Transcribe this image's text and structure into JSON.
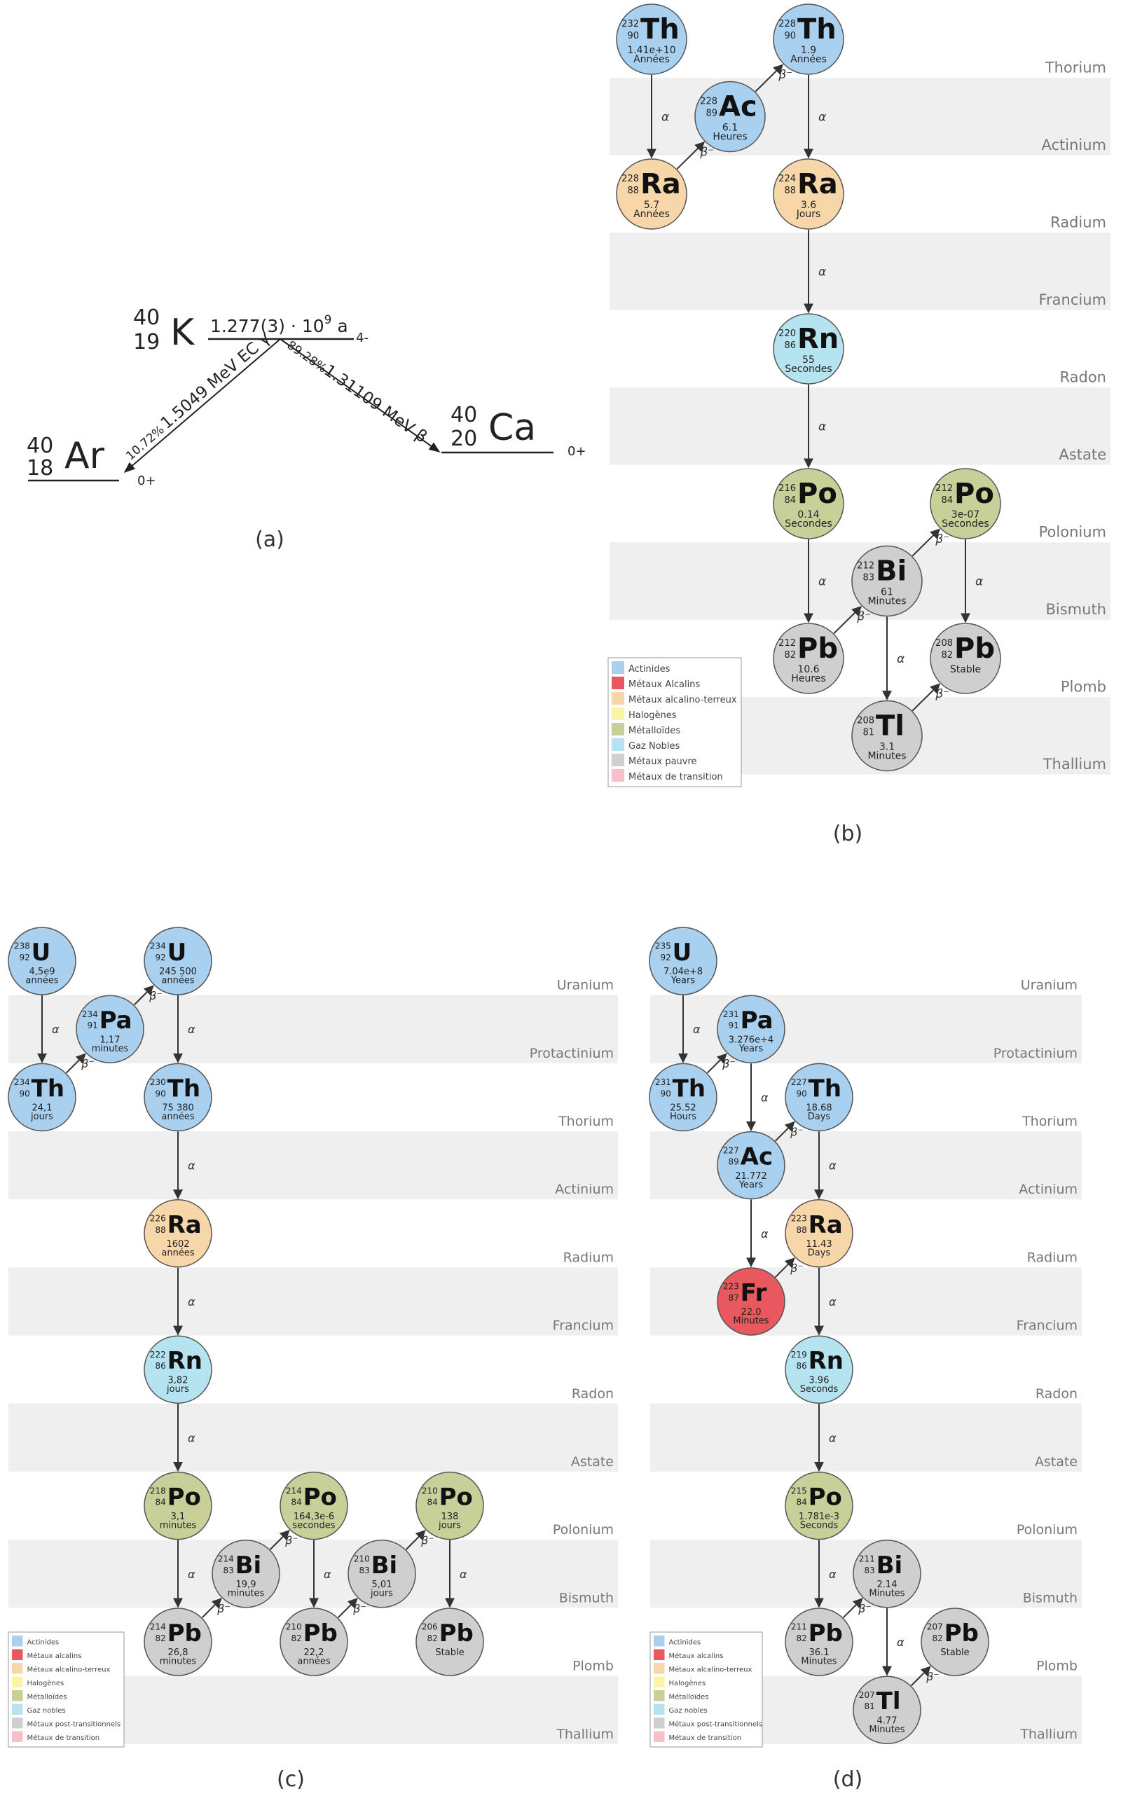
{
  "colors": {
    "actinide": "#a9d0ef",
    "alkali": "#e8585e",
    "alkaline_earth": "#f7d6a9",
    "halogen": "#fbf4a6",
    "metalloid": "#c9cf98",
    "noble_gas": "#b5e3ef",
    "poor_metal": "#cfcfcf",
    "transition": "#f5c0c8",
    "band": "#efefef",
    "stroke": "#555555",
    "arrow": "#333333"
  },
  "panel_a": {
    "caption": "(a)",
    "parent": {
      "mass": "40",
      "z": "19",
      "sym": "K",
      "halflife": "1.277(3) · 10",
      "exp": "9",
      "unit": " a",
      "spin": "4-"
    },
    "left": {
      "mass": "40",
      "z": "18",
      "sym": "Ar",
      "spin": "0+",
      "branch_pct": "10.72%",
      "branch_label": "1.5049 MeV EC γ"
    },
    "right": {
      "mass": "40",
      "z": "20",
      "sym": "Ca",
      "spin": "0+",
      "branch_pct": "89.28%",
      "branch_label": "1.31109 MeV β"
    }
  },
  "panel_b": {
    "caption": "(b)",
    "elements": [
      "Thorium",
      "Actinium",
      "Radium",
      "Francium",
      "Radon",
      "Astate",
      "Polonium",
      "Bismuth",
      "Plomb",
      "Thallium"
    ],
    "nodes": [
      {
        "sym": "Th",
        "mass": "232",
        "z": "90",
        "val": "1.41e+10",
        "unit": "Années",
        "cat": "actinide",
        "row": 0,
        "col": 0
      },
      {
        "sym": "Th",
        "mass": "228",
        "z": "90",
        "val": "1.9",
        "unit": "Années",
        "cat": "actinide",
        "row": 0,
        "col": 2
      },
      {
        "sym": "Ac",
        "mass": "228",
        "z": "89",
        "val": "6.1",
        "unit": "Heures",
        "cat": "actinide",
        "row": 1,
        "col": 1
      },
      {
        "sym": "Ra",
        "mass": "228",
        "z": "88",
        "val": "5.7",
        "unit": "Années",
        "cat": "alkaline_earth",
        "row": 2,
        "col": 0
      },
      {
        "sym": "Ra",
        "mass": "224",
        "z": "88",
        "val": "3.6",
        "unit": "Jours",
        "cat": "alkaline_earth",
        "row": 2,
        "col": 2
      },
      {
        "sym": "Rn",
        "mass": "220",
        "z": "86",
        "val": "55",
        "unit": "Secondes",
        "cat": "noble_gas",
        "row": 4,
        "col": 2
      },
      {
        "sym": "Po",
        "mass": "216",
        "z": "84",
        "val": "0.14",
        "unit": "Secondes",
        "cat": "metalloid",
        "row": 6,
        "col": 2
      },
      {
        "sym": "Po",
        "mass": "212",
        "z": "84",
        "val": "3e-07",
        "unit": "Secondes",
        "cat": "metalloid",
        "row": 6,
        "col": 4
      },
      {
        "sym": "Bi",
        "mass": "212",
        "z": "83",
        "val": "61",
        "unit": "Minutes",
        "cat": "poor_metal",
        "row": 7,
        "col": 3
      },
      {
        "sym": "Pb",
        "mass": "212",
        "z": "82",
        "val": "10.6",
        "unit": "Heures",
        "cat": "poor_metal",
        "row": 8,
        "col": 2
      },
      {
        "sym": "Pb",
        "mass": "208",
        "z": "82",
        "val": "Stable",
        "unit": "",
        "cat": "poor_metal",
        "row": 8,
        "col": 4
      },
      {
        "sym": "Tl",
        "mass": "208",
        "z": "81",
        "val": "3.1",
        "unit": "Minutes",
        "cat": "poor_metal",
        "row": 9,
        "col": 3
      }
    ],
    "edges": [
      {
        "from": 0,
        "to": 3,
        "label": "α"
      },
      {
        "from": 3,
        "to": 2,
        "label": "β⁻"
      },
      {
        "from": 2,
        "to": 1,
        "label": "β⁻"
      },
      {
        "from": 1,
        "to": 4,
        "label": "α"
      },
      {
        "from": 4,
        "to": 5,
        "label": "α"
      },
      {
        "from": 5,
        "to": 6,
        "label": "α"
      },
      {
        "from": 6,
        "to": 9,
        "label": "α"
      },
      {
        "from": 9,
        "to": 8,
        "label": "β⁻"
      },
      {
        "from": 8,
        "to": 7,
        "label": "β⁻"
      },
      {
        "from": 7,
        "to": 10,
        "label": "α"
      },
      {
        "from": 8,
        "to": 11,
        "label": "α"
      },
      {
        "from": 11,
        "to": 10,
        "label": "β⁻"
      }
    ],
    "legend": [
      "Actinides",
      "Métaux Alcalins",
      "Métaux alcalino-terreux",
      "Halogènes",
      "Métalloïdes",
      "Gaz Nobles",
      "Métaux pauvre",
      "Métaux de transition"
    ]
  },
  "panel_c": {
    "caption": "(c)",
    "elements": [
      "Uranium",
      "Protactinium",
      "Thorium",
      "Actinium",
      "Radium",
      "Francium",
      "Radon",
      "Astate",
      "Polonium",
      "Bismuth",
      "Plomb",
      "Thallium"
    ],
    "nodes": [
      {
        "sym": "U",
        "mass": "238",
        "z": "92",
        "val": "4,5e9",
        "unit": "années",
        "cat": "actinide",
        "row": 0,
        "col": 0
      },
      {
        "sym": "U",
        "mass": "234",
        "z": "92",
        "val": "245 500",
        "unit": "années",
        "cat": "actinide",
        "row": 0,
        "col": 2
      },
      {
        "sym": "Pa",
        "mass": "234",
        "z": "91",
        "val": "1,17",
        "unit": "minutes",
        "cat": "actinide",
        "row": 1,
        "col": 1
      },
      {
        "sym": "Th",
        "mass": "234",
        "z": "90",
        "val": "24,1",
        "unit": "jours",
        "cat": "actinide",
        "row": 2,
        "col": 0
      },
      {
        "sym": "Th",
        "mass": "230",
        "z": "90",
        "val": "75 380",
        "unit": "années",
        "cat": "actinide",
        "row": 2,
        "col": 2
      },
      {
        "sym": "Ra",
        "mass": "226",
        "z": "88",
        "val": "1602",
        "unit": "années",
        "cat": "alkaline_earth",
        "row": 4,
        "col": 2
      },
      {
        "sym": "Rn",
        "mass": "222",
        "z": "86",
        "val": "3,82",
        "unit": "jours",
        "cat": "noble_gas",
        "row": 6,
        "col": 2
      },
      {
        "sym": "Po",
        "mass": "218",
        "z": "84",
        "val": "3,1",
        "unit": "minutes",
        "cat": "metalloid",
        "row": 8,
        "col": 2
      },
      {
        "sym": "Po",
        "mass": "214",
        "z": "84",
        "val": "164,3e-6",
        "unit": "secondes",
        "cat": "metalloid",
        "row": 8,
        "col": 4
      },
      {
        "sym": "Po",
        "mass": "210",
        "z": "84",
        "val": "138",
        "unit": "jours",
        "cat": "metalloid",
        "row": 8,
        "col": 6
      },
      {
        "sym": "Bi",
        "mass": "214",
        "z": "83",
        "val": "19,9",
        "unit": "minutes",
        "cat": "poor_metal",
        "row": 9,
        "col": 3
      },
      {
        "sym": "Bi",
        "mass": "210",
        "z": "83",
        "val": "5,01",
        "unit": "jours",
        "cat": "poor_metal",
        "row": 9,
        "col": 5
      },
      {
        "sym": "Pb",
        "mass": "214",
        "z": "82",
        "val": "26,8",
        "unit": "minutes",
        "cat": "poor_metal",
        "row": 10,
        "col": 2
      },
      {
        "sym": "Pb",
        "mass": "210",
        "z": "82",
        "val": "22,2",
        "unit": "années",
        "cat": "poor_metal",
        "row": 10,
        "col": 4
      },
      {
        "sym": "Pb",
        "mass": "206",
        "z": "82",
        "val": "Stable",
        "unit": "",
        "cat": "poor_metal",
        "row": 10,
        "col": 6
      }
    ],
    "edges": [
      {
        "from": 0,
        "to": 3,
        "label": "α"
      },
      {
        "from": 3,
        "to": 2,
        "label": "β⁻"
      },
      {
        "from": 2,
        "to": 1,
        "label": "β⁻"
      },
      {
        "from": 1,
        "to": 4,
        "label": "α"
      },
      {
        "from": 4,
        "to": 5,
        "label": "α"
      },
      {
        "from": 5,
        "to": 6,
        "label": "α"
      },
      {
        "from": 6,
        "to": 7,
        "label": "α"
      },
      {
        "from": 7,
        "to": 12,
        "label": "α"
      },
      {
        "from": 12,
        "to": 10,
        "label": "β⁻"
      },
      {
        "from": 10,
        "to": 8,
        "label": "β⁻"
      },
      {
        "from": 8,
        "to": 13,
        "label": "α"
      },
      {
        "from": 13,
        "to": 11,
        "label": "β⁻"
      },
      {
        "from": 11,
        "to": 9,
        "label": "β⁻"
      },
      {
        "from": 9,
        "to": 14,
        "label": "α"
      }
    ],
    "legend": [
      "Actinides",
      "Métaux alcalins",
      "Métaux alcalino-terreux",
      "Halogènes",
      "Métalloïdes",
      "Gaz nobles",
      "Métaux post-transitionnels",
      "Métaux de transition"
    ]
  },
  "panel_d": {
    "caption": "(d)",
    "elements": [
      "Uranium",
      "Protactinium",
      "Thorium",
      "Actinium",
      "Radium",
      "Francium",
      "Radon",
      "Astate",
      "Polonium",
      "Bismuth",
      "Plomb",
      "Thallium"
    ],
    "nodes": [
      {
        "sym": "U",
        "mass": "235",
        "z": "92",
        "val": "7.04e+8",
        "unit": "Years",
        "cat": "actinide",
        "row": 0,
        "col": 0
      },
      {
        "sym": "Pa",
        "mass": "231",
        "z": "91",
        "val": "3.276e+4",
        "unit": "Years",
        "cat": "actinide",
        "row": 1,
        "col": 1
      },
      {
        "sym": "Th",
        "mass": "231",
        "z": "90",
        "val": "25.52",
        "unit": "Hours",
        "cat": "actinide",
        "row": 2,
        "col": 0
      },
      {
        "sym": "Th",
        "mass": "227",
        "z": "90",
        "val": "18.68",
        "unit": "Days",
        "cat": "actinide",
        "row": 2,
        "col": 2
      },
      {
        "sym": "Ac",
        "mass": "227",
        "z": "89",
        "val": "21.772",
        "unit": "Years",
        "cat": "actinide",
        "row": 3,
        "col": 1
      },
      {
        "sym": "Ra",
        "mass": "223",
        "z": "88",
        "val": "11.43",
        "unit": "Days",
        "cat": "alkaline_earth",
        "row": 4,
        "col": 2
      },
      {
        "sym": "Fr",
        "mass": "223",
        "z": "87",
        "val": "22.0",
        "unit": "Minutes",
        "cat": "alkali",
        "row": 5,
        "col": 1
      },
      {
        "sym": "Rn",
        "mass": "219",
        "z": "86",
        "val": "3.96",
        "unit": "Seconds",
        "cat": "noble_gas",
        "row": 6,
        "col": 2
      },
      {
        "sym": "Po",
        "mass": "215",
        "z": "84",
        "val": "1.781e-3",
        "unit": "Seconds",
        "cat": "metalloid",
        "row": 8,
        "col": 2
      },
      {
        "sym": "Bi",
        "mass": "211",
        "z": "83",
        "val": "2.14",
        "unit": "Minutes",
        "cat": "poor_metal",
        "row": 9,
        "col": 3
      },
      {
        "sym": "Pb",
        "mass": "211",
        "z": "82",
        "val": "36.1",
        "unit": "Minutes",
        "cat": "poor_metal",
        "row": 10,
        "col": 2
      },
      {
        "sym": "Pb",
        "mass": "207",
        "z": "82",
        "val": "Stable",
        "unit": "",
        "cat": "poor_metal",
        "row": 10,
        "col": 4
      },
      {
        "sym": "Tl",
        "mass": "207",
        "z": "81",
        "val": "4.77",
        "unit": "Minutes",
        "cat": "poor_metal",
        "row": 11,
        "col": 3
      }
    ],
    "edges": [
      {
        "from": 0,
        "to": 2,
        "label": "α"
      },
      {
        "from": 2,
        "to": 1,
        "label": "β⁻"
      },
      {
        "from": 1,
        "to": 4,
        "label": "α"
      },
      {
        "from": 4,
        "to": 3,
        "label": "β⁻"
      },
      {
        "from": 3,
        "to": 5,
        "label": "α"
      },
      {
        "from": 4,
        "to": 6,
        "label": "α"
      },
      {
        "from": 6,
        "to": 5,
        "label": "β⁻"
      },
      {
        "from": 5,
        "to": 7,
        "label": "α"
      },
      {
        "from": 7,
        "to": 8,
        "label": "α"
      },
      {
        "from": 8,
        "to": 10,
        "label": "α"
      },
      {
        "from": 10,
        "to": 9,
        "label": "β⁻"
      },
      {
        "from": 9,
        "to": 12,
        "label": "α"
      },
      {
        "from": 12,
        "to": 11,
        "label": "β⁻"
      }
    ],
    "legend": [
      "Actinides",
      "Métaux alcalins",
      "Métaux alcalino-terreux",
      "Halogènes",
      "Métalloïdes",
      "Gaz nobles",
      "Métaux post-transitionnels",
      "Métaux de transition"
    ]
  }
}
